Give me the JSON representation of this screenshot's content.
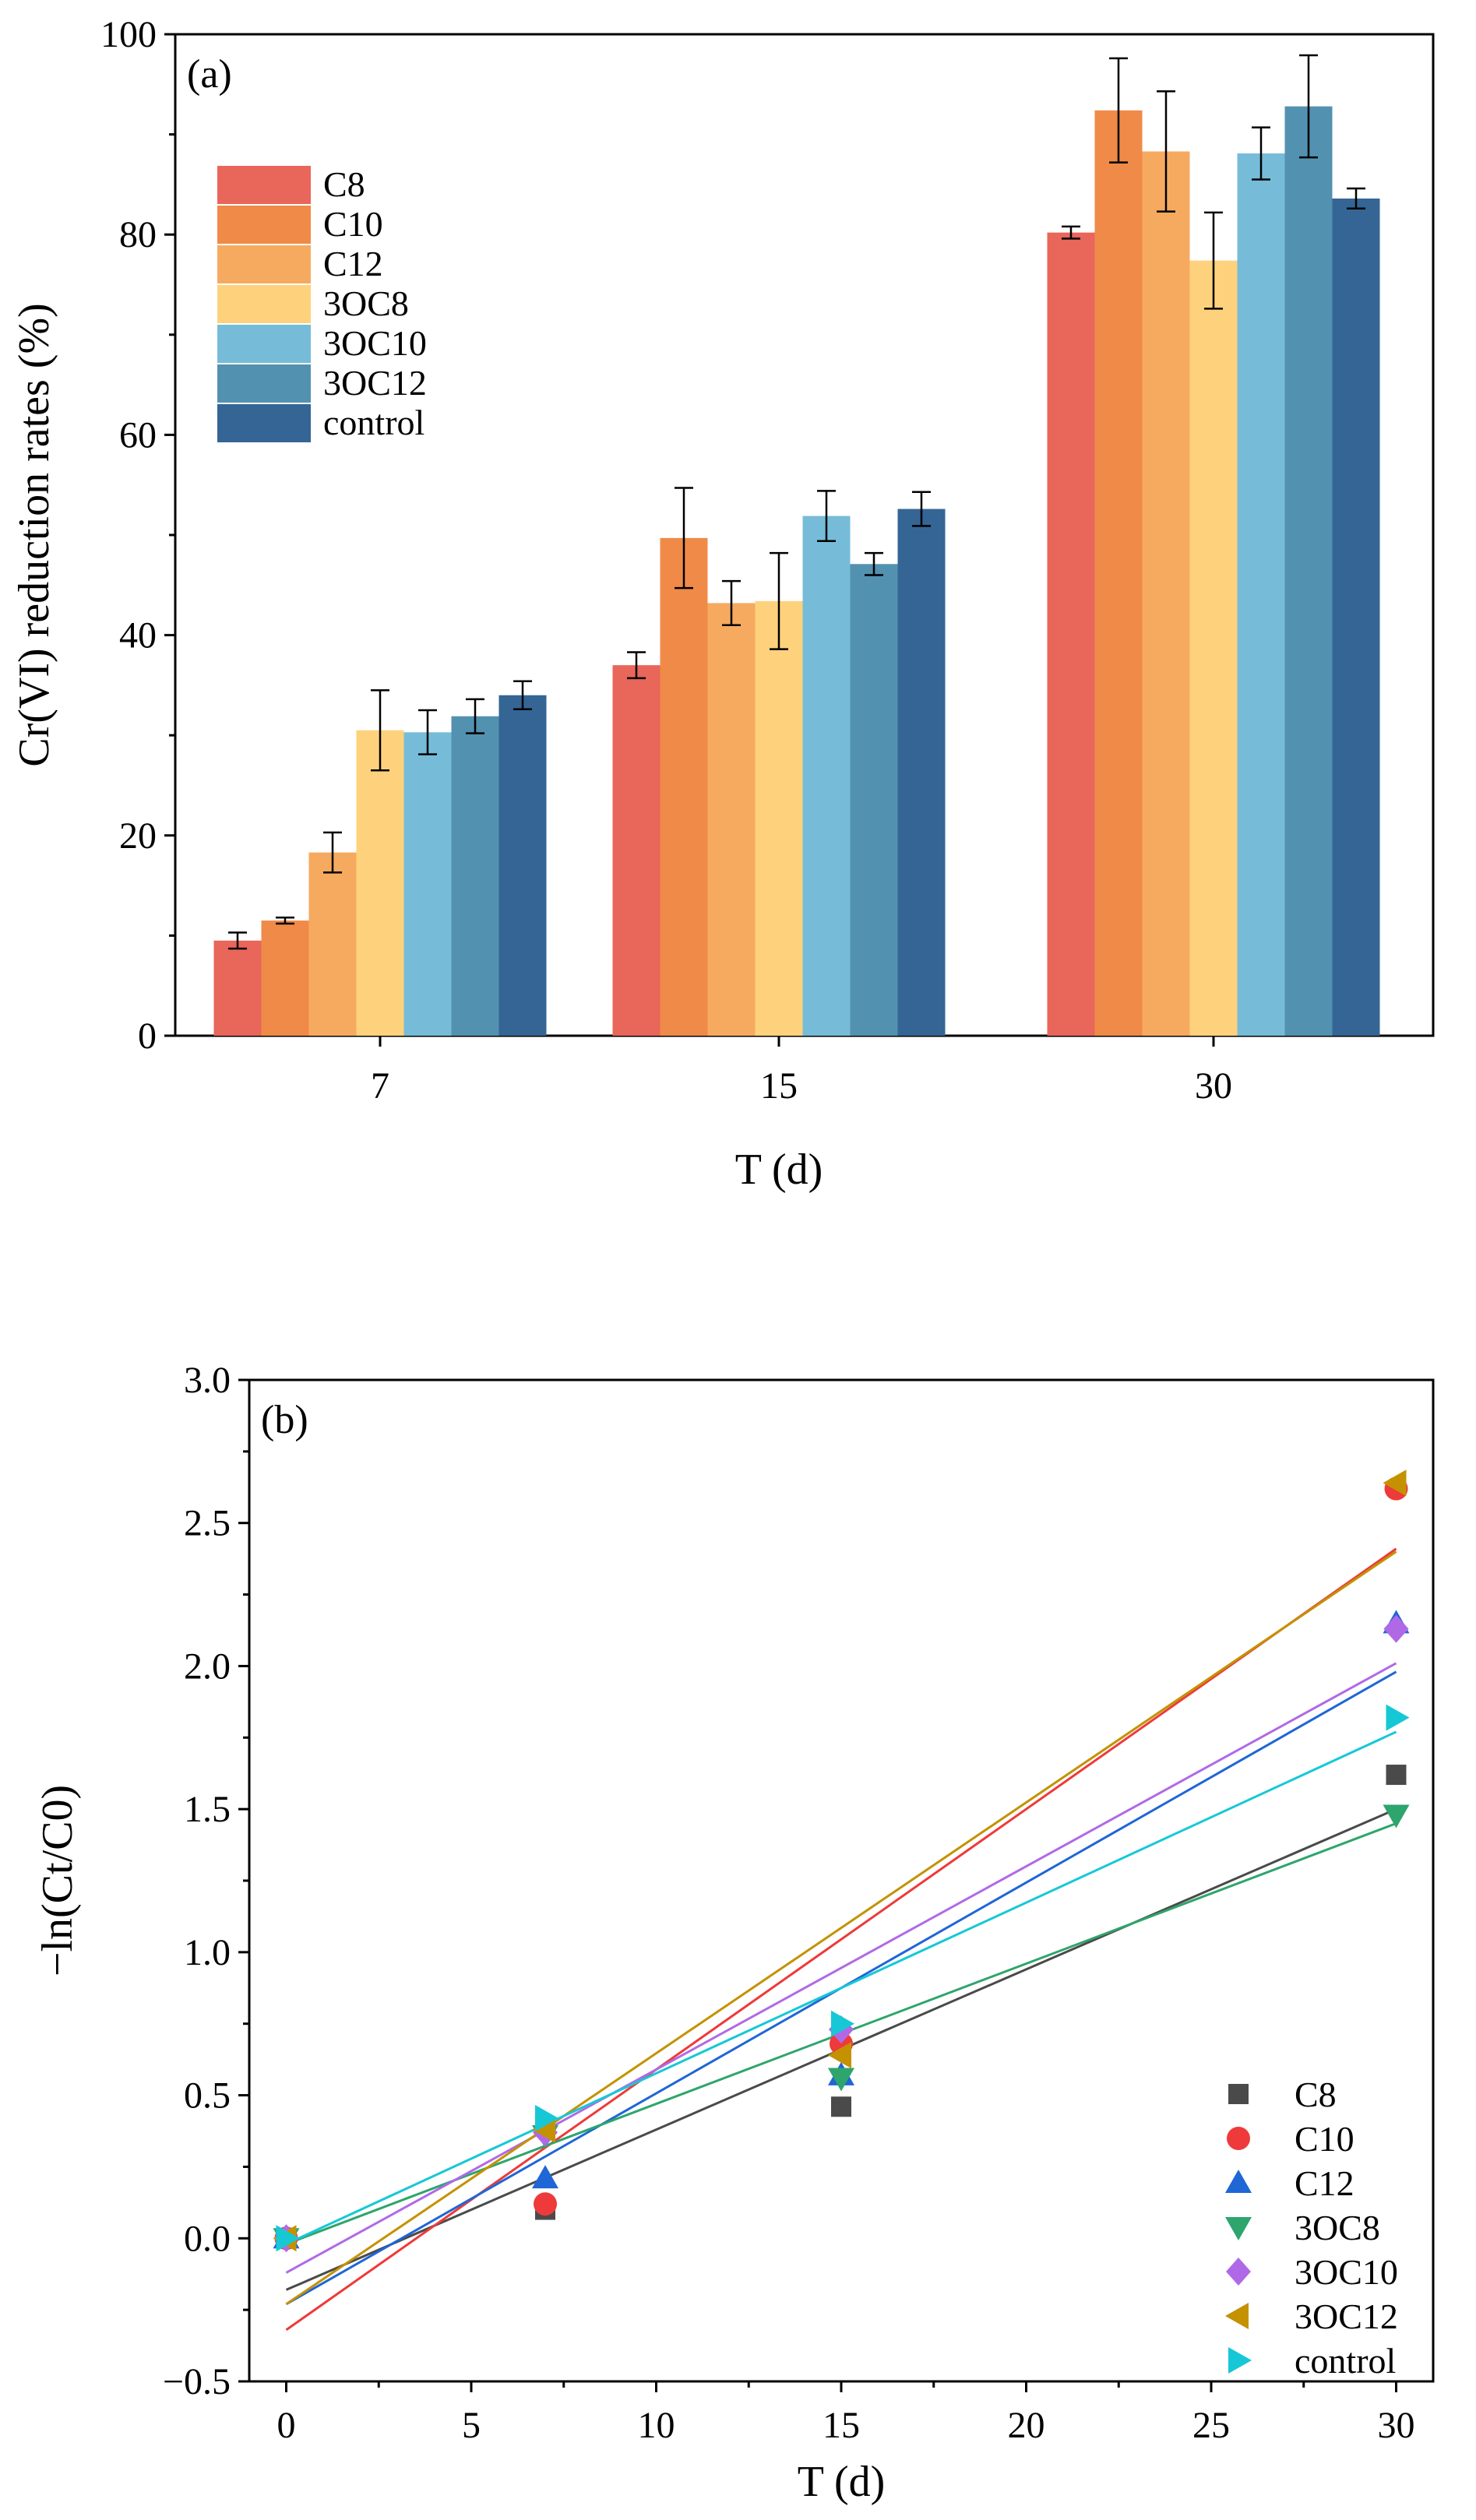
{
  "chart_data": [
    {
      "type": "bar",
      "panel_label": "(a)",
      "xlabel": "T (d)",
      "ylabel": "Cr(VI) reduction rates (%)",
      "ylim": [
        0,
        100
      ],
      "yticks": [
        "0",
        "20",
        "40",
        "60",
        "80",
        "100"
      ],
      "categories": [
        "7",
        "15",
        "30"
      ],
      "legend_position": "top-left",
      "series": [
        {
          "name": "C8",
          "color": "#E8665A",
          "values": [
            9.5,
            37.0,
            80.2
          ],
          "errors": [
            0.8,
            1.3,
            0.6
          ]
        },
        {
          "name": "C10",
          "color": "#F08A48",
          "values": [
            11.5,
            49.7,
            92.4
          ],
          "errors": [
            0.3,
            5.0,
            5.2
          ]
        },
        {
          "name": "C12",
          "color": "#F6AA60",
          "values": [
            18.3,
            43.2,
            88.3
          ],
          "errors": [
            2.0,
            2.2,
            6.0
          ]
        },
        {
          "name": "3OC8",
          "color": "#FED27C",
          "values": [
            30.5,
            43.4,
            77.4
          ],
          "errors": [
            4.0,
            4.8,
            4.8
          ]
        },
        {
          "name": "3OC10",
          "color": "#76BCD8",
          "values": [
            30.3,
            51.9,
            88.1
          ],
          "errors": [
            2.2,
            2.5,
            2.6
          ]
        },
        {
          "name": "3OC12",
          "color": "#5391B0",
          "values": [
            31.9,
            47.1,
            92.8
          ],
          "errors": [
            1.7,
            1.1,
            5.1
          ]
        },
        {
          "name": "control",
          "color": "#346595",
          "values": [
            34.0,
            52.6,
            83.6
          ],
          "errors": [
            1.4,
            1.7,
            1.0
          ]
        }
      ]
    },
    {
      "type": "scatter",
      "panel_label": "(b)",
      "xlabel": "T (d)",
      "ylabel": "−ln(Ct/C0)",
      "xlim": [
        -1,
        31
      ],
      "ylim": [
        -0.5,
        3.0
      ],
      "xticks": [
        "0",
        "5",
        "10",
        "15",
        "20",
        "25",
        "30"
      ],
      "yticks": [
        "−0.5",
        "0.0",
        "0.5",
        "1.0",
        "1.5",
        "2.0",
        "2.5",
        "3.0"
      ],
      "legend_position": "bottom-right",
      "x": [
        0,
        7,
        15,
        30
      ],
      "series": [
        {
          "name": "C8",
          "color": "#4A4A4A",
          "marker": "square",
          "y": [
            0.0,
            0.1,
            0.46,
            1.62
          ],
          "fit": [
            -0.18,
            1.5
          ]
        },
        {
          "name": "C10",
          "color": "#EE3A3A",
          "marker": "circle",
          "y": [
            0.0,
            0.12,
            0.68,
            2.62
          ],
          "fit": [
            -0.32,
            2.41
          ]
        },
        {
          "name": "C12",
          "color": "#1F66D6",
          "marker": "triangle-up",
          "y": [
            0.0,
            0.21,
            0.57,
            2.15
          ],
          "fit": [
            -0.23,
            1.98
          ]
        },
        {
          "name": "3OC8",
          "color": "#2EA56C",
          "marker": "triangle-down",
          "y": [
            0.0,
            0.36,
            0.56,
            1.48
          ],
          "fit": [
            -0.02,
            1.45
          ]
        },
        {
          "name": "3OC10",
          "color": "#B069E6",
          "marker": "diamond",
          "y": [
            0.0,
            0.37,
            0.73,
            2.13
          ],
          "fit": [
            -0.12,
            2.01
          ]
        },
        {
          "name": "3OC12",
          "color": "#C49200",
          "marker": "triangle-left",
          "y": [
            0.0,
            0.38,
            0.64,
            2.64
          ],
          "fit": [
            -0.23,
            2.4
          ]
        },
        {
          "name": "control",
          "color": "#16C8D6",
          "marker": "triangle-right",
          "y": [
            0.0,
            0.42,
            0.75,
            1.82
          ],
          "fit": [
            -0.02,
            1.77
          ]
        }
      ]
    }
  ]
}
